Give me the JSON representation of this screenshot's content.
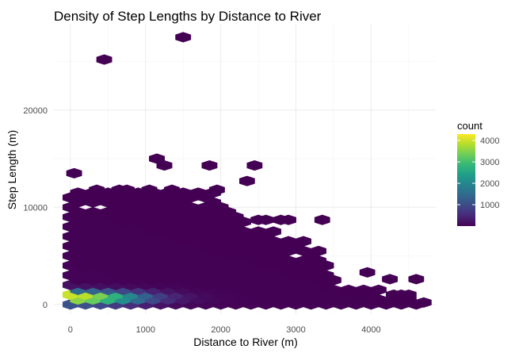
{
  "chart_data": {
    "type": "hexbin",
    "title": "Density of Step Lengths by Distance to River",
    "xlabel": "Distance to River (m)",
    "ylabel": "Step Length (m)",
    "xlim": [
      -220,
      4860
    ],
    "ylim": [
      -1000,
      28800
    ],
    "x_ticks": [
      0,
      1000,
      2000,
      3000,
      4000
    ],
    "x_tick_labels": [
      "0",
      "1000",
      "2000",
      "3000",
      "4000"
    ],
    "y_ticks": [
      0,
      10000,
      20000
    ],
    "y_tick_labels": [
      "0",
      "10000",
      "20000"
    ],
    "grid": true,
    "hex_dx": 200,
    "hex_dy": 1000,
    "legend": {
      "title": "count",
      "position": "right",
      "min": 1,
      "max": 4300,
      "ticks": [
        1000,
        2000,
        3000,
        4000
      ],
      "tick_labels": [
        "1000",
        "2000",
        "3000",
        "4000"
      ]
    },
    "colorscale": [
      "#440154",
      "#482878",
      "#3E4A89",
      "#31688E",
      "#26828E",
      "#1F9E89",
      "#35B779",
      "#6DCD59",
      "#B4DE2C",
      "#FDE725"
    ],
    "bins": [
      [
        1500,
        27500,
        2
      ],
      [
        450,
        25200,
        2
      ],
      [
        1150,
        15000,
        2
      ],
      [
        1250,
        14300,
        2
      ],
      [
        1850,
        14300,
        2
      ],
      [
        2450,
        14300,
        2
      ],
      [
        50,
        13500,
        3
      ],
      [
        2350,
        12700,
        2
      ],
      [
        0,
        11000,
        5
      ],
      [
        100,
        11000,
        4
      ],
      [
        200,
        11000,
        3
      ],
      [
        350,
        11800,
        2
      ],
      [
        650,
        11800,
        2
      ],
      [
        750,
        11800,
        2
      ],
      [
        1050,
        11800,
        2
      ],
      [
        1350,
        11800,
        2
      ],
      [
        1950,
        11800,
        2
      ],
      [
        2500,
        8700,
        3
      ],
      [
        2600,
        8700,
        2
      ],
      [
        2800,
        8700,
        2
      ],
      [
        2900,
        8700,
        2
      ],
      [
        3350,
        8700,
        2
      ],
      [
        4250,
        2600,
        3
      ],
      [
        4600,
        2600,
        2
      ],
      [
        3950,
        3300,
        2
      ],
      [
        4300,
        1000,
        3
      ],
      [
        4400,
        1000,
        2
      ],
      [
        4500,
        1000,
        2
      ],
      [
        4700,
        200,
        2
      ]
    ],
    "dense_region": {
      "rows": [
        {
          "y": 0,
          "xmax": 4600
        },
        {
          "y": 1000,
          "xmax": 4100
        },
        {
          "y": 2000,
          "xmax": 3500
        },
        {
          "y": 3000,
          "xmax": 3400
        },
        {
          "y": 4000,
          "xmax": 3400
        },
        {
          "y": 5000,
          "xmax": 3300
        },
        {
          "y": 6000,
          "xmax": 3100
        },
        {
          "y": 7000,
          "xmax": 2700
        },
        {
          "y": 8000,
          "xmax": 2300
        },
        {
          "y": 9000,
          "xmax": 2200
        },
        {
          "y": 10000,
          "xmax": 2000
        },
        {
          "y": 11000,
          "xmax": 1900
        }
      ],
      "peak": {
        "x": 50,
        "y": 800,
        "count": 4300
      },
      "holes": [
        [
          1100,
          10000
        ],
        [
          1500,
          10000
        ],
        [
          1650,
          10500
        ],
        [
          2100,
          9200
        ],
        [
          2950,
          5000
        ],
        [
          150,
          10000
        ],
        [
          400,
          10200
        ]
      ]
    }
  }
}
